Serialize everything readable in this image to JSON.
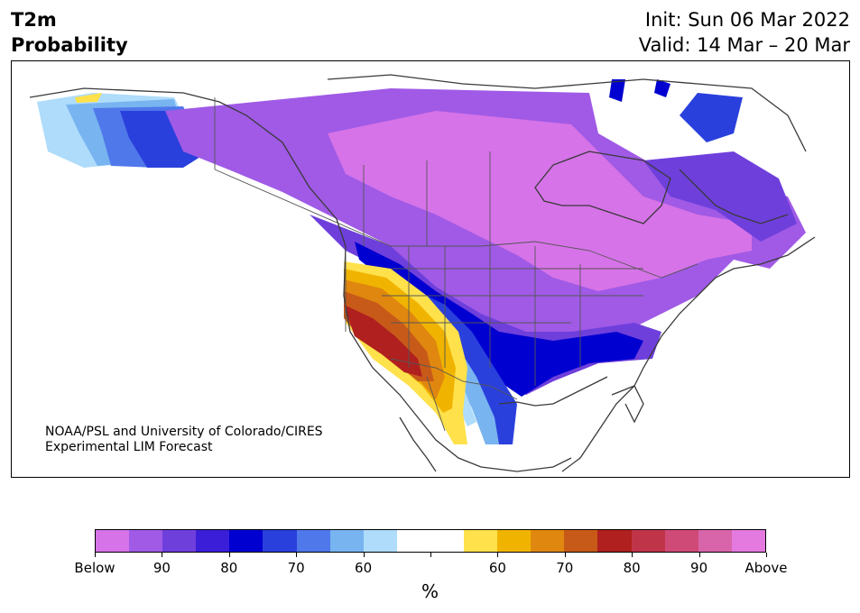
{
  "header": {
    "variable": "T2m",
    "product": "Probability",
    "init": "Init: Sun 06 Mar 2022",
    "valid": "Valid: 14 Mar – 20 Mar"
  },
  "map": {
    "credit_line1": "NOAA/PSL and University of Colorado/CIRES",
    "credit_line2": "Experimental LIM Forecast"
  },
  "colorbar": {
    "unit": "%",
    "tick_labels": [
      "Below",
      "90",
      "80",
      "70",
      "60",
      "",
      "60",
      "70",
      "80",
      "90",
      "Above"
    ],
    "colors": [
      "#d673e8",
      "#a05ae6",
      "#6f3fdc",
      "#3a1ed8",
      "#0000d0",
      "#2a40dc",
      "#4f78ea",
      "#78b4f0",
      "#aedcfa",
      "#ffffff",
      "#ffffff",
      "#ffe14b",
      "#f0b400",
      "#e0870f",
      "#c85a19",
      "#b0201e",
      "#c0344a",
      "#d04a78",
      "#d865aa",
      "#e47ae0"
    ]
  }
}
